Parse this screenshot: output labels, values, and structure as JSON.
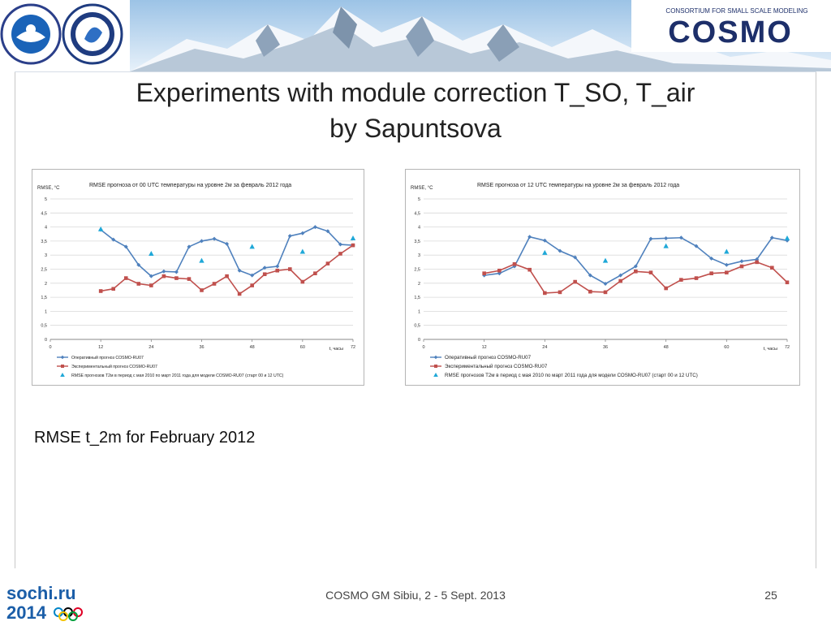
{
  "header": {
    "left_logo_1_text": "РОСГИДРОМЕТ ROSHYDROMET",
    "cosmo_logo_text": "COSMO",
    "cosmo_tagline": "CONSORTIUM FOR SMALL SCALE MODELING"
  },
  "slide": {
    "title_line1": "Experiments with module correction T_SO, T_air",
    "title_line2": "by Sapuntsova",
    "subtitle": "RMSE t_2m for February 2012",
    "footer": "COSMO GM Sibiu, 2 - 5   Sept. 2013",
    "page_number": "25",
    "sochi_logo": "sochi.ru 2014"
  },
  "colors": {
    "operational": "#4f81bd",
    "experimental": "#c0504d",
    "reference": "#1fa8d8"
  },
  "chart_data": [
    {
      "type": "line",
      "title": "RMSE прогноза от 00 UTC  температуры на уровне 2м  за февраль 2012 года",
      "ylabel": "RMSE, °C",
      "xlabel": "t, часы",
      "xlim": [
        0,
        72
      ],
      "ylim": [
        0,
        5
      ],
      "xticks": [
        0,
        12,
        24,
        36,
        48,
        60,
        72
      ],
      "yticks": [
        "0",
        "0,5",
        "1",
        "1,5",
        "2",
        "2,5",
        "3",
        "3,5",
        "4",
        "4,5",
        "5"
      ],
      "legend_position": "bottom",
      "series": [
        {
          "name": "Оперативный прогноз COSMO-RU07",
          "marker": "diamond",
          "x": [
            12,
            15,
            18,
            21,
            24,
            27,
            30,
            33,
            36,
            39,
            42,
            45,
            48,
            51,
            54,
            57,
            60,
            63,
            66,
            69,
            72
          ],
          "y": [
            3.9,
            3.55,
            3.3,
            2.65,
            2.25,
            2.42,
            2.4,
            3.3,
            3.5,
            3.58,
            3.4,
            2.45,
            2.28,
            2.55,
            2.6,
            3.68,
            3.78,
            4.0,
            3.85,
            3.38,
            3.35
          ]
        },
        {
          "name": "Экспериментальный прогноз COSMO-RU07",
          "marker": "square",
          "x": [
            12,
            15,
            18,
            21,
            24,
            27,
            30,
            33,
            36,
            39,
            42,
            45,
            48,
            51,
            54,
            57,
            60,
            63,
            66,
            69,
            72
          ],
          "y": [
            1.72,
            1.8,
            2.18,
            1.98,
            1.92,
            2.25,
            2.18,
            2.15,
            1.75,
            1.98,
            2.25,
            1.62,
            1.92,
            2.32,
            2.45,
            2.5,
            2.05,
            2.35,
            2.7,
            3.05,
            3.35
          ]
        },
        {
          "name": "RMSE прогнозов Т2м в период с мая 2010 по март 2011 года для модели COSMO-RU07 (старт 00 и 12 UTC)",
          "marker": "triangle",
          "x": [
            12,
            24,
            36,
            48,
            60,
            72
          ],
          "y": [
            3.92,
            3.05,
            2.8,
            3.3,
            3.12,
            3.6
          ]
        }
      ]
    },
    {
      "type": "line",
      "title": "RMSE прогноза от 12 UTC  температуры на уровне 2м  за февраль 2012 года",
      "ylabel": "RMSE, °C",
      "xlabel": "t, часы",
      "xlim": [
        0,
        72
      ],
      "ylim": [
        0,
        5
      ],
      "xticks": [
        0,
        12,
        24,
        36,
        48,
        60,
        72
      ],
      "yticks": [
        "0",
        "0,5",
        "1",
        "1,5",
        "2",
        "2,5",
        "3",
        "3,5",
        "4",
        "4,5",
        "5"
      ],
      "legend_position": "bottom",
      "series": [
        {
          "name": "Оперативный прогноз COSMO-RU07",
          "marker": "diamond",
          "x": [
            12,
            15,
            18,
            21,
            24,
            27,
            30,
            33,
            36,
            39,
            42,
            45,
            48,
            51,
            54,
            57,
            60,
            63,
            66,
            69,
            72
          ],
          "y": [
            2.28,
            2.35,
            2.6,
            3.65,
            3.52,
            3.15,
            2.92,
            2.28,
            1.98,
            2.28,
            2.6,
            3.58,
            3.6,
            3.62,
            3.32,
            2.88,
            2.65,
            2.78,
            2.85,
            3.62,
            3.52
          ]
        },
        {
          "name": "Экспериментальный прогноз COSMO-RU07",
          "marker": "square",
          "x": [
            12,
            15,
            18,
            21,
            24,
            27,
            30,
            33,
            36,
            39,
            42,
            45,
            48,
            51,
            54,
            57,
            60,
            63,
            66,
            69,
            72
          ],
          "y": [
            2.35,
            2.45,
            2.68,
            2.48,
            1.65,
            1.68,
            2.05,
            1.7,
            1.68,
            2.08,
            2.42,
            2.38,
            1.82,
            2.12,
            2.18,
            2.35,
            2.38,
            2.6,
            2.75,
            2.55,
            2.03
          ]
        },
        {
          "name": "RMSE прогнозов Т2м в период с мая 2010 по март 2011 года для модели COSMO-RU07 (старт 00 и 12 UTC)",
          "marker": "triangle",
          "x": [
            24,
            36,
            48,
            60,
            72
          ],
          "y": [
            3.08,
            2.8,
            3.32,
            3.12,
            3.6
          ]
        }
      ]
    }
  ]
}
